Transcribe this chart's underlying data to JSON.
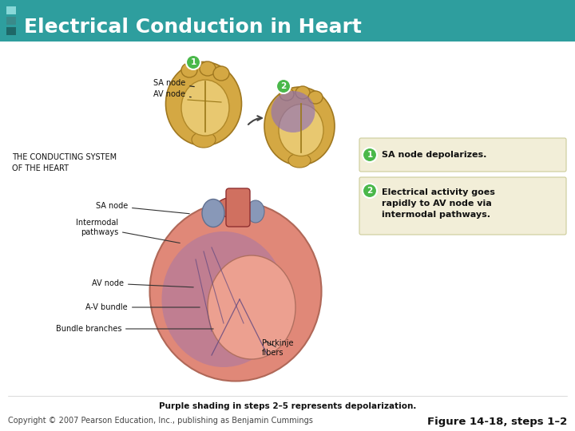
{
  "title": "Electrical Conduction in Heart",
  "title_color": "#ffffff",
  "header_bg_color": "#2e9e9e",
  "body_bg_color": "#ffffff",
  "sidebar_color1": "#88d8d8",
  "sidebar_color2": "#3a8a8a",
  "sidebar_color3": "#1e6868",
  "conducting_system_text": "THE CONDUCTING SYSTEM\nOF THE HEART",
  "sa_node_label": "SA node",
  "av_node_label": "AV node",
  "annotation1": "SA node depolarizes.",
  "annotation2_line1": "Electrical activity goes",
  "annotation2_line2": "rapidly to AV node via",
  "annotation2_line3": "intermodal pathways.",
  "green_color": "#4ab84a",
  "badge_text": "#ffffff",
  "ann_bg": "#f2eed8",
  "ann_border": "#cccc99",
  "heart_tan": "#d4a843",
  "heart_tan_light": "#e8c870",
  "heart_tan_inner": "#c89830",
  "heart_pink": "#e08878",
  "heart_pink_light": "#eca090",
  "heart_red": "#c05050",
  "heart_purple": "#9070b8",
  "heart_blue_vessel": "#8898b8",
  "heart_aorta": "#d07060",
  "footer_bold": "Purple shading in steps 2–5 represents depolarization.",
  "footer_left": "Copyright © 2007 Pearson Education, Inc., publishing as Benjamin Cummings",
  "footer_right": "Figure 14-18, steps 1–2",
  "label_color": "#111111",
  "label_fs": 7.0,
  "title_fs": 18,
  "ann_fs": 8.0,
  "footer_fs": 7.0,
  "footer_bold_fs": 7.5
}
